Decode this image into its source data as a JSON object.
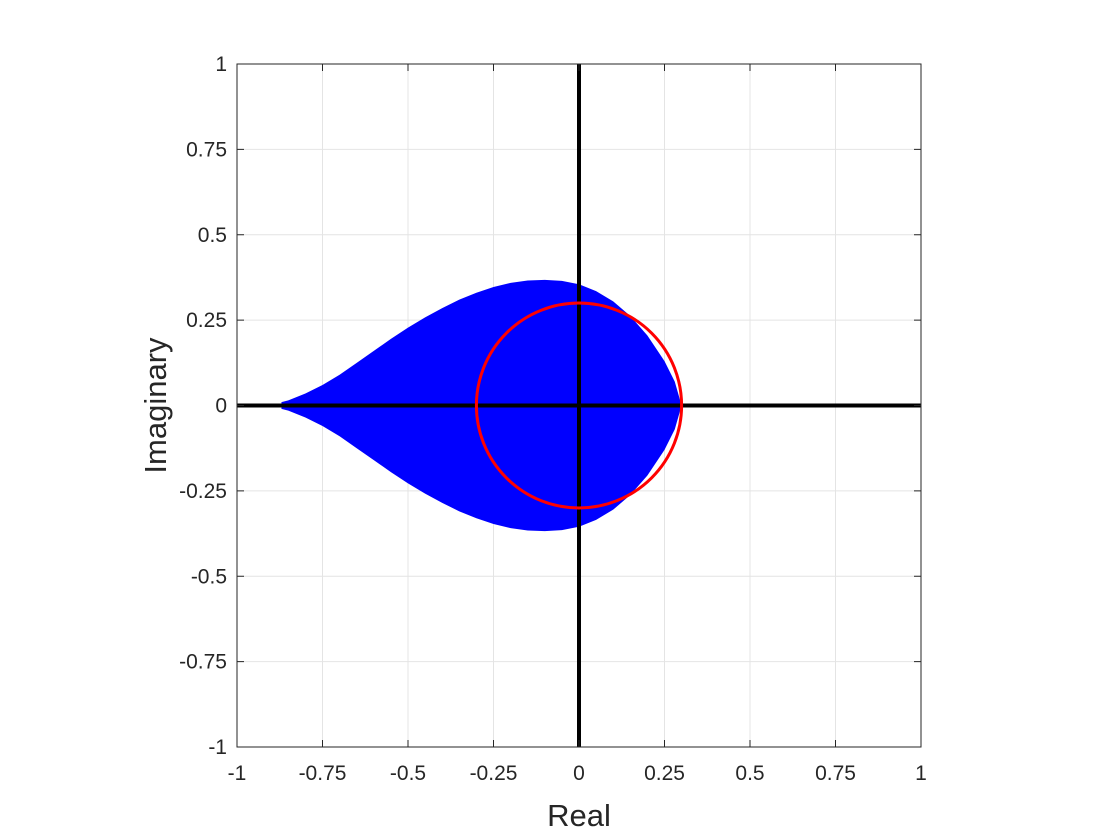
{
  "chart_data": {
    "type": "area",
    "title": "",
    "xlabel": "Real",
    "ylabel": "Imaginary",
    "xlim": [
      -1,
      1
    ],
    "ylim": [
      -1,
      1
    ],
    "xticks": [
      -1,
      -0.75,
      -0.5,
      -0.25,
      0,
      0.25,
      0.5,
      0.75,
      1
    ],
    "yticks": [
      -1,
      -0.75,
      -0.5,
      -0.25,
      0,
      0.25,
      0.5,
      0.75,
      1
    ],
    "xtick_labels": [
      "-1",
      "-0.75",
      "-0.5",
      "-0.25",
      "0",
      "0.25",
      "0.5",
      "0.75",
      "1"
    ],
    "ytick_labels": [
      "-1",
      "-0.75",
      "-0.5",
      "-0.25",
      "0",
      "0.25",
      "0.5",
      "0.75",
      "1"
    ],
    "grid": true,
    "series": [
      {
        "kind": "filled-region",
        "color": "#0000ff",
        "upper_boundary": {
          "x": [
            -0.87,
            -0.85,
            -0.8,
            -0.75,
            -0.7,
            -0.65,
            -0.6,
            -0.55,
            -0.5,
            -0.45,
            -0.4,
            -0.35,
            -0.3,
            -0.25,
            -0.2,
            -0.15,
            -0.1,
            -0.05,
            0,
            0.05,
            0.1,
            0.15,
            0.2,
            0.25,
            0.28,
            0.3
          ],
          "y": [
            0.01,
            0.015,
            0.035,
            0.06,
            0.09,
            0.125,
            0.16,
            0.195,
            0.228,
            0.258,
            0.285,
            0.31,
            0.33,
            0.347,
            0.359,
            0.366,
            0.368,
            0.365,
            0.355,
            0.335,
            0.305,
            0.262,
            0.205,
            0.13,
            0.07,
            0.0
          ]
        },
        "symmetric_about_real_axis": true
      },
      {
        "kind": "circle",
        "color": "#ff0000",
        "center": [
          0,
          0
        ],
        "radius": 0.3
      },
      {
        "kind": "axis-line",
        "color": "#000000",
        "orientation": "horizontal",
        "value": 0
      },
      {
        "kind": "axis-line",
        "color": "#000000",
        "orientation": "vertical",
        "value": 0
      }
    ]
  }
}
